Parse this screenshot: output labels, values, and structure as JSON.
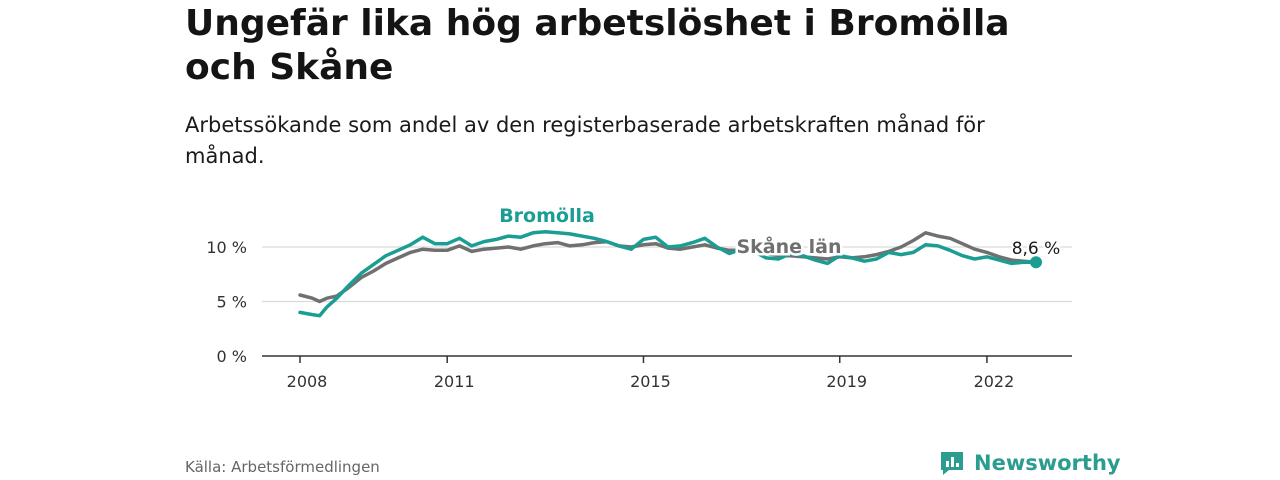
{
  "header": {
    "title": "Ungefär lika hög arbetslöshet i Bromölla och Skåne",
    "subtitle": "Arbetssökande som andel av den registerbaserade arbetskraften månad för månad."
  },
  "footer": {
    "source": "Källa: Arbetsförmedlingen",
    "brand": "Newsworthy",
    "brand_icon": "newsworthy-logo-icon"
  },
  "colors": {
    "bromolla": "#1a9e94",
    "skane": "#707070",
    "grid": "#d9d9d9",
    "axis": "#333333",
    "brand": "#2a9d8f"
  },
  "chart_data": {
    "type": "line",
    "x_ticks": [
      2008,
      2011,
      2015,
      2019,
      2022
    ],
    "xlim": [
      2008.0,
      2023.5
    ],
    "ylim": [
      0,
      10
    ],
    "y_ticks": [
      {
        "value": 0,
        "label": "0 %"
      },
      {
        "value": 5,
        "label": "5 %"
      },
      {
        "value": 10,
        "label": "10 %"
      }
    ],
    "end_label": "8,6 %",
    "series": [
      {
        "name": "Bromölla",
        "color": "#1a9e94",
        "points": [
          [
            2008.0,
            4.0
          ],
          [
            2008.25,
            3.8
          ],
          [
            2008.4,
            3.7
          ],
          [
            2008.55,
            4.5
          ],
          [
            2008.75,
            5.3
          ],
          [
            2009.0,
            6.5
          ],
          [
            2009.25,
            7.6
          ],
          [
            2009.5,
            8.4
          ],
          [
            2009.75,
            9.2
          ],
          [
            2010.0,
            9.7
          ],
          [
            2010.25,
            10.2
          ],
          [
            2010.5,
            10.9
          ],
          [
            2010.75,
            10.3
          ],
          [
            2011.0,
            10.3
          ],
          [
            2011.25,
            10.8
          ],
          [
            2011.5,
            10.1
          ],
          [
            2011.75,
            10.5
          ],
          [
            2012.0,
            10.7
          ],
          [
            2012.25,
            11.0
          ],
          [
            2012.5,
            10.9
          ],
          [
            2012.75,
            11.3
          ],
          [
            2013.0,
            11.4
          ],
          [
            2013.25,
            11.3
          ],
          [
            2013.5,
            11.2
          ],
          [
            2013.75,
            11.0
          ],
          [
            2014.0,
            10.8
          ],
          [
            2014.25,
            10.5
          ],
          [
            2014.5,
            10.1
          ],
          [
            2014.75,
            9.8
          ],
          [
            2015.0,
            10.7
          ],
          [
            2015.25,
            10.9
          ],
          [
            2015.5,
            10.0
          ],
          [
            2015.75,
            10.1
          ],
          [
            2016.0,
            10.4
          ],
          [
            2016.25,
            10.8
          ],
          [
            2016.5,
            10.0
          ],
          [
            2016.75,
            9.4
          ],
          [
            2017.0,
            9.8
          ],
          [
            2017.25,
            9.6
          ],
          [
            2017.5,
            9.0
          ],
          [
            2017.75,
            8.9
          ],
          [
            2018.0,
            9.4
          ],
          [
            2018.25,
            9.2
          ],
          [
            2018.5,
            8.8
          ],
          [
            2018.75,
            8.5
          ],
          [
            2019.0,
            9.2
          ],
          [
            2019.25,
            9.0
          ],
          [
            2019.5,
            8.7
          ],
          [
            2019.75,
            8.9
          ],
          [
            2020.0,
            9.5
          ],
          [
            2020.25,
            9.3
          ],
          [
            2020.5,
            9.5
          ],
          [
            2020.75,
            10.2
          ],
          [
            2021.0,
            10.1
          ],
          [
            2021.25,
            9.7
          ],
          [
            2021.5,
            9.2
          ],
          [
            2021.75,
            8.9
          ],
          [
            2022.0,
            9.1
          ],
          [
            2022.25,
            8.8
          ],
          [
            2022.5,
            8.5
          ],
          [
            2022.75,
            8.6
          ],
          [
            2023.0,
            8.6
          ]
        ]
      },
      {
        "name": "Skåne län",
        "color": "#707070",
        "points": [
          [
            2008.0,
            5.6
          ],
          [
            2008.25,
            5.3
          ],
          [
            2008.4,
            5.0
          ],
          [
            2008.55,
            5.3
          ],
          [
            2008.75,
            5.5
          ],
          [
            2009.0,
            6.3
          ],
          [
            2009.25,
            7.2
          ],
          [
            2009.5,
            7.8
          ],
          [
            2009.75,
            8.5
          ],
          [
            2010.0,
            9.0
          ],
          [
            2010.25,
            9.5
          ],
          [
            2010.5,
            9.8
          ],
          [
            2010.75,
            9.7
          ],
          [
            2011.0,
            9.7
          ],
          [
            2011.25,
            10.1
          ],
          [
            2011.5,
            9.6
          ],
          [
            2011.75,
            9.8
          ],
          [
            2012.0,
            9.9
          ],
          [
            2012.25,
            10.0
          ],
          [
            2012.5,
            9.8
          ],
          [
            2012.75,
            10.1
          ],
          [
            2013.0,
            10.3
          ],
          [
            2013.25,
            10.4
          ],
          [
            2013.5,
            10.1
          ],
          [
            2013.75,
            10.2
          ],
          [
            2014.0,
            10.4
          ],
          [
            2014.25,
            10.5
          ],
          [
            2014.5,
            10.1
          ],
          [
            2014.75,
            10.0
          ],
          [
            2015.0,
            10.2
          ],
          [
            2015.25,
            10.3
          ],
          [
            2015.5,
            9.9
          ],
          [
            2015.75,
            9.8
          ],
          [
            2016.0,
            10.0
          ],
          [
            2016.25,
            10.2
          ],
          [
            2016.5,
            9.9
          ],
          [
            2016.75,
            9.7
          ],
          [
            2017.0,
            9.7
          ],
          [
            2017.25,
            9.6
          ],
          [
            2017.5,
            9.4
          ],
          [
            2017.75,
            9.2
          ],
          [
            2018.0,
            9.2
          ],
          [
            2018.25,
            9.1
          ],
          [
            2018.5,
            9.0
          ],
          [
            2018.75,
            8.9
          ],
          [
            2019.0,
            9.1
          ],
          [
            2019.25,
            9.0
          ],
          [
            2019.5,
            9.1
          ],
          [
            2019.75,
            9.3
          ],
          [
            2020.0,
            9.6
          ],
          [
            2020.25,
            10.0
          ],
          [
            2020.5,
            10.6
          ],
          [
            2020.75,
            11.3
          ],
          [
            2021.0,
            11.0
          ],
          [
            2021.25,
            10.8
          ],
          [
            2021.5,
            10.3
          ],
          [
            2021.75,
            9.8
          ],
          [
            2022.0,
            9.5
          ],
          [
            2022.25,
            9.1
          ],
          [
            2022.5,
            8.8
          ],
          [
            2022.75,
            8.7
          ],
          [
            2023.0,
            8.6
          ]
        ]
      }
    ]
  }
}
